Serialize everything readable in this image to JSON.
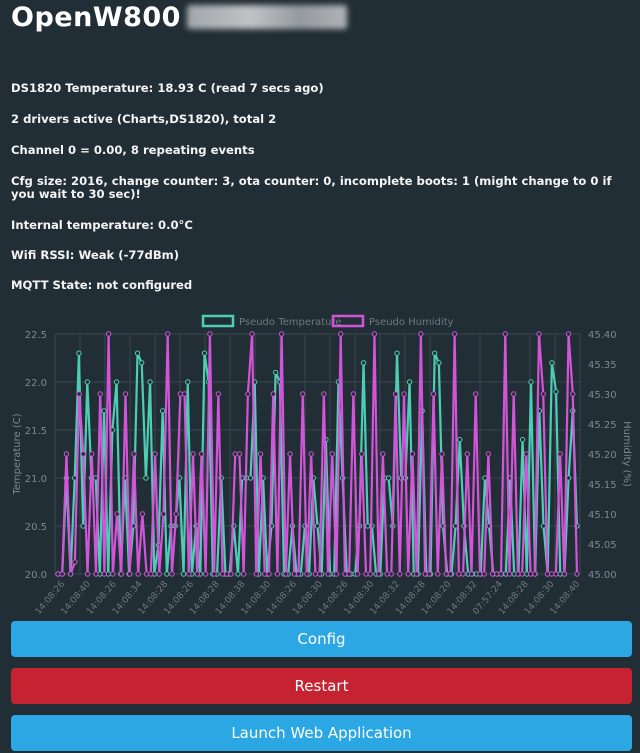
{
  "header": {
    "title": "OpenW800"
  },
  "info": [
    "DS1820 Temperature: 18.93 C (read 7 secs ago)",
    "2 drivers active (Charts,DS1820), total 2",
    "Channel 0 = 0.00, 8 repeating events",
    "Cfg size: 2016, change counter: 3, ota counter: 0, incomplete boots: 1 (might change to 0 if you wait to 30 sec)!",
    "Internal temperature: 0.0°C",
    "Wifi RSSI: Weak (-77dBm)",
    "MQTT State: not configured"
  ],
  "buttons": {
    "config": "Config",
    "restart": "Restart",
    "launch": "Launch Web Application"
  },
  "colors": {
    "temperature": "#4ecdb6",
    "humidity": "#d254d8",
    "background": "#222e35",
    "button_blue": "#2ba7e3",
    "button_red": "#c62332"
  },
  "chart_data": {
    "type": "line",
    "legend_position": "top-center",
    "ylabel": "Temperature (C)",
    "y2label": "Humidity (%)",
    "ylim": [
      20.0,
      22.5
    ],
    "y2lim": [
      45.0,
      45.4
    ],
    "yticks": [
      "20.0",
      "20.5",
      "21.0",
      "21.5",
      "22.0",
      "22.5"
    ],
    "y2ticks": [
      "45.00",
      "45.05",
      "45.10",
      "45.15",
      "45.20",
      "45.25",
      "45.30",
      "45.35",
      "45.40"
    ],
    "x_tick_labels": [
      "14:08:26",
      "14:08:40",
      "14:08:26",
      "14:08:34",
      "14:08:28",
      "14:08:26",
      "14:08:28",
      "14:08:38",
      "14:08:30",
      "14:08:26",
      "14:08:30",
      "14:08:26",
      "14:08:30",
      "14:08:32",
      "14:08:28",
      "14:08:20",
      "14:08:32",
      "07:57:24",
      "14:08:28",
      "14:08:30",
      "14:08:40"
    ],
    "grid": true,
    "series": [
      {
        "name": "Pseudo Temperature",
        "axis": "left",
        "values": [
          20.0,
          20.0,
          21.0,
          20.0,
          21.0,
          22.3,
          20.5,
          22.0,
          21.0,
          21.0,
          20.0,
          21.7,
          20.0,
          21.5,
          22.0,
          20.0,
          21.0,
          20.0,
          20.5,
          22.3,
          22.2,
          21.0,
          22.0,
          20.0,
          20.3,
          21.7,
          20.0,
          20.5,
          20.5,
          21.0,
          20.0,
          22.0,
          20.0,
          20.5,
          20.0,
          22.3,
          22.0,
          20.0,
          20.0,
          21.0,
          20.0,
          20.0,
          20.5,
          20.0,
          21.0,
          21.0,
          21.0,
          22.0,
          20.0,
          21.0,
          20.0,
          20.5,
          22.1,
          22.0,
          20.0,
          20.0,
          20.5,
          20.0,
          20.0,
          20.5,
          20.0,
          21.0,
          20.5,
          20.0,
          21.4,
          20.0,
          20.0,
          22.0,
          21.0,
          20.0,
          20.0,
          20.0,
          20.5,
          22.2,
          20.5,
          20.5,
          20.0,
          20.0,
          21.0,
          21.0,
          20.5,
          22.3,
          21.0,
          21.0,
          22.0,
          20.0,
          20.0,
          21.7,
          20.0,
          20.0,
          22.3,
          22.2,
          20.5,
          20.0,
          20.0,
          20.5,
          21.4,
          20.5,
          20.0,
          20.0,
          20.0,
          20.0,
          21.0,
          20.5,
          20.0,
          20.0,
          20.0,
          20.0,
          21.0,
          20.0,
          20.0,
          21.4,
          20.0,
          22.0,
          20.0,
          21.7,
          20.5,
          20.0,
          22.2,
          21.9,
          20.0,
          20.0,
          21.0,
          21.7,
          20.5
        ]
      },
      {
        "name": "Pseudo Humidity",
        "axis": "right",
        "values": [
          45.0,
          45.0,
          45.2,
          45.0,
          45.02,
          45.3,
          45.2,
          45.0,
          45.2,
          45.0,
          45.3,
          45.0,
          45.4,
          45.0,
          45.1,
          45.0,
          45.3,
          45.0,
          45.2,
          45.0,
          45.1,
          45.0,
          45.0,
          45.2,
          45.0,
          45.1,
          45.4,
          45.0,
          45.1,
          45.3,
          45.3,
          45.0,
          45.2,
          45.0,
          45.2,
          45.0,
          45.4,
          45.0,
          45.3,
          45.0,
          45.0,
          45.0,
          45.2,
          45.2,
          45.0,
          45.3,
          45.4,
          45.0,
          45.2,
          45.0,
          45.0,
          45.3,
          45.0,
          45.4,
          45.0,
          45.2,
          45.0,
          45.0,
          45.3,
          45.0,
          45.2,
          45.0,
          45.0,
          45.3,
          45.0,
          45.2,
          45.0,
          45.4,
          45.0,
          45.0,
          45.3,
          45.0,
          45.2,
          45.0,
          45.0,
          45.4,
          45.0,
          45.2,
          45.0,
          45.0,
          45.3,
          45.0,
          45.3,
          45.0,
          45.2,
          45.0,
          45.4,
          45.0,
          45.0,
          45.3,
          45.0,
          45.2,
          45.0,
          45.0,
          45.4,
          45.0,
          45.0,
          45.2,
          45.0,
          45.3,
          45.0,
          45.0,
          45.2,
          45.0,
          45.0,
          45.0,
          45.4,
          45.0,
          45.3,
          45.0,
          45.0,
          45.2,
          45.0,
          45.0,
          45.4,
          45.3,
          45.0,
          45.0,
          45.0,
          45.2,
          45.0,
          45.4,
          45.3,
          45.0
        ]
      }
    ]
  }
}
